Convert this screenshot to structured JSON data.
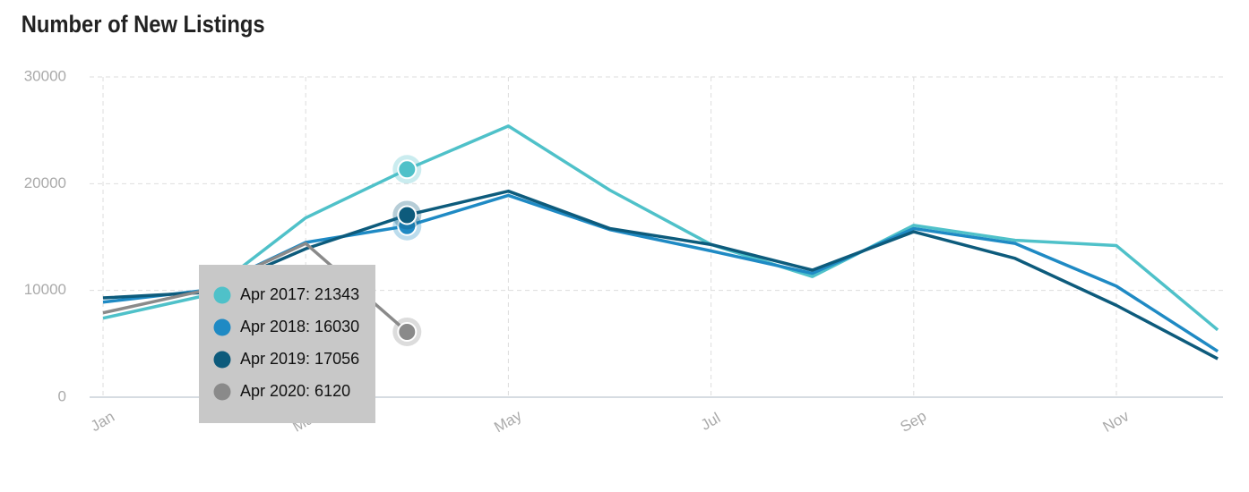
{
  "chart_data": {
    "type": "line",
    "title": "Number of New Listings",
    "categories": [
      "Jan",
      null,
      "Mar",
      null,
      "May",
      null,
      "Jul",
      null,
      "Sep",
      null,
      "Nov",
      null
    ],
    "series": [
      {
        "color": "#4fc1c9",
        "values": [
          7400,
          9500,
          16800,
          21343,
          25400,
          19400,
          14300,
          11300,
          16100,
          14700,
          14200,
          6300
        ]
      },
      {
        "color": "#1f8ac4",
        "values": [
          8900,
          10000,
          14500,
          16030,
          18900,
          15700,
          13700,
          11600,
          15800,
          14400,
          10400,
          4300
        ]
      },
      {
        "color": "#0d5b7c",
        "values": [
          9300,
          9800,
          13900,
          17056,
          19300,
          15800,
          14300,
          11900,
          15500,
          13000,
          8600,
          3600
        ]
      },
      {
        "color": "#8a8a8a",
        "values": [
          7900,
          10000,
          14400,
          6120,
          null,
          null,
          null,
          null,
          null,
          null,
          null,
          null
        ]
      }
    ],
    "ylim": [
      0,
      30000
    ],
    "yticks": [
      0,
      10000,
      20000,
      30000
    ],
    "grid": true,
    "tooltip": [
      "Apr 2017: 21343",
      "Apr 2018: 16030",
      "Apr 2019: 17056",
      "Apr 2020: 6120"
    ]
  }
}
